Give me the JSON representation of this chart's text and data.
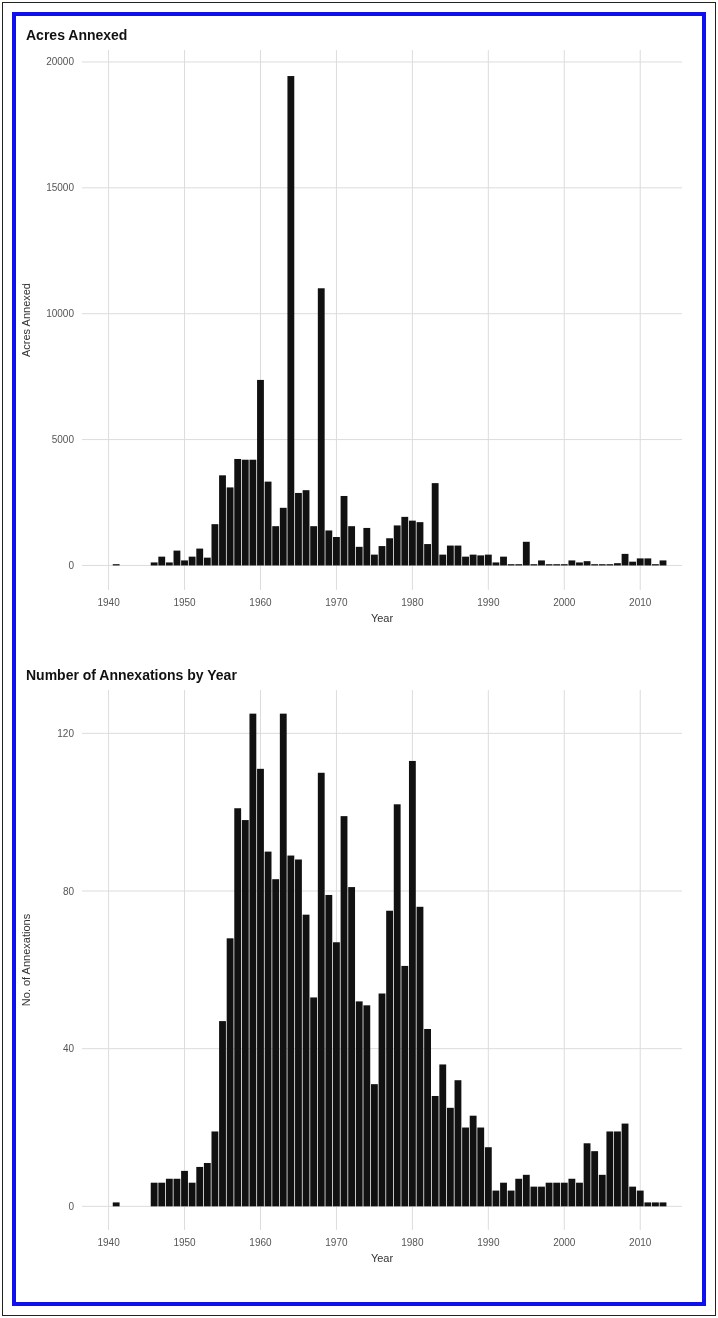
{
  "chart_data": [
    {
      "type": "bar",
      "title": "Acres Annexed",
      "xlabel": "Year",
      "ylabel": "Acres Annexed",
      "color": "#111111",
      "grid": true,
      "x": [
        1941,
        1946,
        1947,
        1948,
        1949,
        1950,
        1951,
        1952,
        1953,
        1954,
        1955,
        1956,
        1957,
        1958,
        1959,
        1960,
        1961,
        1962,
        1963,
        1964,
        1965,
        1966,
        1967,
        1968,
        1969,
        1970,
        1971,
        1972,
        1973,
        1974,
        1975,
        1976,
        1977,
        1978,
        1979,
        1980,
        1981,
        1982,
        1983,
        1984,
        1985,
        1986,
        1987,
        1988,
        1989,
        1990,
        1991,
        1992,
        1993,
        1994,
        1995,
        1996,
        1997,
        1998,
        1999,
        2000,
        2001,
        2002,
        2003,
        2004,
        2005,
        2006,
        2007,
        2008,
        2009,
        2010,
        2011,
        2012,
        2013
      ],
      "values": [
        50,
        120,
        350,
        120,
        590,
        200,
        350,
        670,
        310,
        1640,
        3580,
        3100,
        4230,
        4200,
        4200,
        7370,
        3330,
        1560,
        2290,
        19440,
        2880,
        2990,
        1560,
        11010,
        1390,
        1130,
        2760,
        1560,
        740,
        1490,
        430,
        770,
        1080,
        1590,
        1930,
        1780,
        1720,
        850,
        3270,
        430,
        790,
        790,
        350,
        430,
        400,
        430,
        120,
        350,
        50,
        50,
        940,
        50,
        200,
        50,
        50,
        50,
        200,
        120,
        170,
        50,
        50,
        50,
        90,
        460,
        150,
        280,
        280,
        50,
        200
      ],
      "xlim": [
        1936.5,
        2015.5
      ],
      "xticks": [
        1940,
        1950,
        1960,
        1970,
        1980,
        1990,
        2000,
        2010
      ],
      "ylim": [
        -975,
        20475
      ],
      "yticks": [
        0,
        5000,
        10000,
        15000,
        20000
      ]
    },
    {
      "type": "bar",
      "title": "Number of Annexations by Year",
      "xlabel": "Year",
      "ylabel": "No. of Annexations",
      "color": "#111111",
      "grid": true,
      "x": [
        1941,
        1946,
        1947,
        1948,
        1949,
        1950,
        1951,
        1952,
        1953,
        1954,
        1955,
        1956,
        1957,
        1958,
        1959,
        1960,
        1961,
        1962,
        1963,
        1964,
        1965,
        1966,
        1967,
        1968,
        1969,
        1970,
        1971,
        1972,
        1973,
        1974,
        1975,
        1976,
        1977,
        1978,
        1979,
        1980,
        1981,
        1982,
        1983,
        1984,
        1985,
        1986,
        1987,
        1988,
        1989,
        1990,
        1991,
        1992,
        1993,
        1994,
        1995,
        1996,
        1997,
        1998,
        1999,
        2000,
        2001,
        2002,
        2003,
        2004,
        2005,
        2006,
        2007,
        2008,
        2009,
        2010,
        2011,
        2012,
        2013
      ],
      "values": [
        1,
        6,
        6,
        7,
        7,
        9,
        6,
        10,
        11,
        19,
        47,
        68,
        101,
        98,
        125,
        111,
        90,
        83,
        125,
        89,
        88,
        74,
        53,
        110,
        79,
        67,
        99,
        81,
        52,
        51,
        31,
        54,
        75,
        102,
        61,
        113,
        76,
        45,
        28,
        36,
        25,
        32,
        20,
        23,
        20,
        15,
        4,
        6,
        4,
        7,
        8,
        5,
        5,
        6,
        6,
        6,
        7,
        6,
        16,
        14,
        8,
        19,
        19,
        21,
        5,
        4,
        1,
        1,
        1
      ],
      "xlim": [
        1936.5,
        2015.5
      ],
      "xticks": [
        1940,
        1950,
        1960,
        1970,
        1980,
        1990,
        2000,
        2010
      ],
      "ylim": [
        -6,
        131
      ],
      "yticks": [
        0,
        40,
        80,
        120
      ]
    }
  ]
}
